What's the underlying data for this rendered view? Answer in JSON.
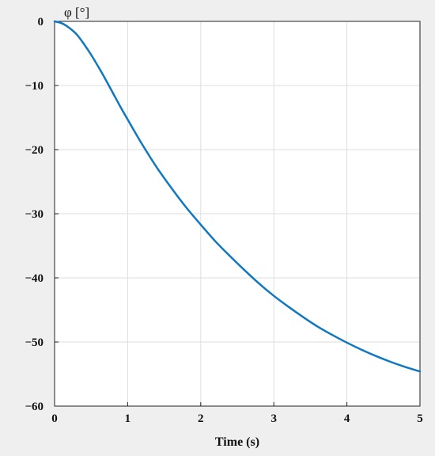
{
  "chart_data": {
    "type": "line",
    "title": "",
    "xlabel": "Time (s)",
    "ylabel": "φ [°]",
    "xlim": [
      0,
      5
    ],
    "ylim": [
      -60,
      0
    ],
    "x_ticks": [
      0,
      1,
      2,
      3,
      4,
      5
    ],
    "x_tick_labels": [
      "0",
      "1",
      "2",
      "3",
      "4",
      "5"
    ],
    "y_ticks": [
      0,
      -10,
      -20,
      -30,
      -40,
      -50,
      -60
    ],
    "y_tick_labels": [
      "0",
      "−10",
      "−20",
      "−30",
      "−40",
      "−50",
      "−60"
    ],
    "grid": true,
    "legend": "none",
    "series": [
      {
        "color": "#0f78c0",
        "x": [
          0,
          0.1,
          0.2,
          0.3,
          0.4,
          0.5,
          0.6,
          0.7,
          0.8,
          0.9,
          1.0,
          1.2,
          1.4,
          1.6,
          1.8,
          2.0,
          2.2,
          2.4,
          2.6,
          2.8,
          3.0,
          3.2,
          3.4,
          3.6,
          3.8,
          4.0,
          4.2,
          4.4,
          4.6,
          4.8,
          5.0
        ],
        "y": [
          0,
          -0.3,
          -1.0,
          -2.0,
          -3.5,
          -5.2,
          -7.1,
          -9.1,
          -11.2,
          -13.3,
          -15.3,
          -19.2,
          -22.8,
          -26.0,
          -29.0,
          -31.7,
          -34.3,
          -36.6,
          -38.8,
          -40.9,
          -42.8,
          -44.5,
          -46.1,
          -47.6,
          -48.9,
          -50.1,
          -51.2,
          -52.2,
          -53.1,
          -53.9,
          -54.6
        ]
      }
    ]
  }
}
